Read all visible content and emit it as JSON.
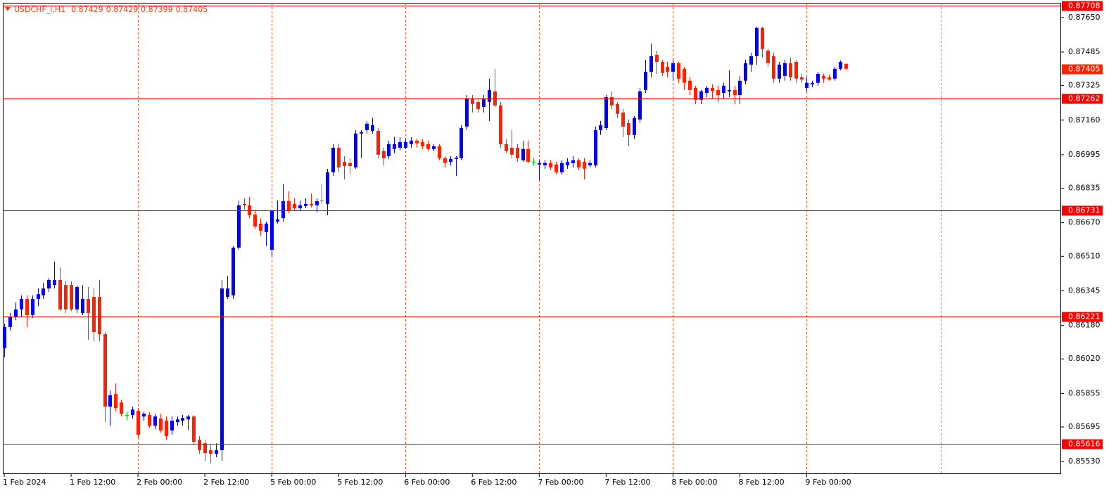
{
  "chart_data": {
    "type": "candlestick",
    "title": "USDCHF_i,H1",
    "categories": [
      "1 Feb 2024",
      null,
      null,
      null,
      null,
      null,
      null,
      null,
      null,
      null,
      null,
      null,
      "1 Feb 12:00",
      null,
      null,
      null,
      null,
      null,
      null,
      null,
      null,
      null,
      null,
      null,
      "2 Feb 00:00",
      null,
      null,
      null,
      null,
      null,
      null,
      null,
      null,
      null,
      null,
      null,
      "2 Feb 12:00",
      null,
      null,
      null,
      null,
      null,
      null,
      null,
      null,
      null,
      null,
      null,
      "5 Feb 00:00",
      null,
      null,
      null,
      null,
      null,
      null,
      null,
      null,
      null,
      null,
      null,
      "5 Feb 12:00",
      null,
      null,
      null,
      null,
      null,
      null,
      null,
      null,
      null,
      null,
      null,
      "6 Feb 00:00",
      null,
      null,
      null,
      null,
      null,
      null,
      null,
      null,
      null,
      null,
      null,
      "6 Feb 12:00",
      null,
      null,
      null,
      null,
      null,
      null,
      null,
      null,
      null,
      null,
      null,
      "7 Feb 00:00",
      null,
      null,
      null,
      null,
      null,
      null,
      null,
      null,
      null,
      null,
      null,
      "7 Feb 12:00",
      null,
      null,
      null,
      null,
      null,
      null,
      null,
      null,
      null,
      null,
      null,
      "8 Feb 00:00",
      null,
      null,
      null,
      null,
      null,
      null,
      null,
      null,
      null,
      null,
      null,
      "8 Feb 12:00",
      null,
      null,
      null,
      null,
      null,
      null,
      null,
      null,
      null,
      null,
      null,
      "9 Feb 00:00",
      null,
      null,
      null,
      null,
      null,
      null,
      null
    ],
    "open": [
      0.86071,
      0.86172,
      0.86222,
      0.86256,
      0.86306,
      0.86229,
      0.86306,
      0.86323,
      0.86356,
      0.86373,
      0.86397,
      0.86373,
      0.86373,
      0.86256,
      0.86239,
      0.86306,
      0.86316,
      0.86316,
      0.86138,
      0.85792,
      0.85852,
      0.85812,
      0.85752,
      0.85752,
      0.85772,
      0.85745,
      0.85752,
      0.85701,
      0.85735,
      0.85725,
      0.85678,
      0.85718,
      0.85725,
      0.85731,
      0.85745,
      0.85634,
      0.85617,
      0.85584,
      0.85567,
      0.85584,
      0.86316,
      0.86323,
      0.86551,
      0.8676,
      0.86753,
      0.86709,
      0.86666,
      0.86625,
      0.86541,
      0.86676,
      0.86692,
      0.86773,
      0.8676,
      0.86739,
      0.8675,
      0.8676,
      0.86753,
      0.86776,
      0.8676,
      0.86911,
      0.87028,
      0.86961,
      0.86955,
      0.86934,
      0.87096,
      0.87112,
      0.87109,
      0.87109,
      0.87012,
      0.86988,
      0.87022,
      0.87028,
      0.87028,
      0.87045,
      0.87062,
      0.87055,
      0.87045,
      0.87022,
      0.87035,
      0.86978,
      0.86961,
      0.86975,
      0.86978,
      0.87129,
      0.87264,
      0.87247,
      0.87223,
      0.87247,
      0.87297,
      0.8723,
      0.87045,
      0.87028,
      0.87028,
      0.86968,
      0.87022,
      0.86961,
      0.86948,
      0.86944,
      0.86955,
      0.86948,
      0.86911,
      0.86944,
      0.86955,
      0.86968,
      0.86961,
      0.86944,
      0.86944,
      0.87112,
      0.87122,
      0.8727,
      0.87237,
      0.87196,
      0.87146,
      0.87089,
      0.87163,
      0.87304,
      0.87391,
      0.87472,
      0.87438,
      0.87415,
      0.87391,
      0.87432,
      0.87405,
      0.87348,
      0.87314,
      0.87257,
      0.8729,
      0.87314,
      0.87304,
      0.8729,
      0.87297,
      0.87304,
      0.8728,
      0.87348,
      0.87425,
      0.87465,
      0.876,
      0.87492,
      0.87465,
      0.87358,
      0.87371,
      0.87432,
      0.87438,
      0.87364,
      0.87314,
      0.87331,
      0.87338,
      0.87371,
      0.87364,
      0.87358,
      0.87405,
      0.87429
    ],
    "high": [
      0.86188,
      0.86239,
      0.86289,
      0.86323,
      0.86323,
      0.86323,
      0.86356,
      0.86383,
      0.86407,
      0.86484,
      0.86457,
      0.8639,
      0.8639,
      0.86373,
      0.86373,
      0.86363,
      0.86356,
      0.86397,
      0.86148,
      0.85869,
      0.85903,
      0.85825,
      0.85768,
      0.85792,
      0.85785,
      0.85768,
      0.85765,
      0.85758,
      0.85758,
      0.85745,
      0.85745,
      0.85745,
      0.85752,
      0.85752,
      0.85752,
      0.85651,
      0.85634,
      0.8561,
      0.85617,
      0.86397,
      0.86417,
      0.86558,
      0.86776,
      0.86787,
      0.86793,
      0.86733,
      0.86692,
      0.86676,
      0.86733,
      0.86776,
      0.86854,
      0.8682,
      0.86787,
      0.86776,
      0.86787,
      0.8681,
      0.86787,
      0.86854,
      0.86928,
      0.87045,
      0.87045,
      0.86988,
      0.86978,
      0.87112,
      0.87112,
      0.87156,
      0.8717,
      0.87122,
      0.87028,
      0.87062,
      0.87079,
      0.87079,
      0.87072,
      0.87079,
      0.87072,
      0.87069,
      0.87062,
      0.87045,
      0.87045,
      0.86988,
      0.86988,
      0.86988,
      0.87136,
      0.8728,
      0.8728,
      0.87257,
      0.8728,
      0.87358,
      0.87405,
      0.87247,
      0.87069,
      0.87112,
      0.87045,
      0.87062,
      0.87062,
      0.86978,
      0.86968,
      0.86968,
      0.86968,
      0.86961,
      0.86968,
      0.86978,
      0.86988,
      0.86978,
      0.86978,
      0.86968,
      0.87129,
      0.87156,
      0.8728,
      0.87297,
      0.87247,
      0.87213,
      0.87163,
      0.8718,
      0.87314,
      0.87448,
      0.87526,
      0.87492,
      0.87448,
      0.87438,
      0.87448,
      0.87438,
      0.87415,
      0.87364,
      0.87324,
      0.87304,
      0.87324,
      0.87331,
      0.87324,
      0.87338,
      0.87398,
      0.87324,
      0.87371,
      0.87448,
      0.87482,
      0.87606,
      0.87606,
      0.87499,
      0.87482,
      0.87438,
      0.87448,
      0.87458,
      0.87448,
      0.87381,
      0.87364,
      0.87348,
      0.87391,
      0.87381,
      0.87378,
      0.87415,
      0.87445,
      0.87429
    ],
    "low": [
      0.86027,
      0.86155,
      0.86205,
      0.86222,
      0.86172,
      0.86215,
      0.86272,
      0.86306,
      0.8634,
      0.86356,
      0.86249,
      0.86239,
      0.86249,
      0.86239,
      0.86229,
      0.86111,
      0.86104,
      0.86104,
      0.85718,
      0.85701,
      0.85768,
      0.85745,
      0.85728,
      0.85735,
      0.85644,
      0.85725,
      0.85691,
      0.85684,
      0.85668,
      0.85634,
      0.85658,
      0.85701,
      0.85701,
      0.85678,
      0.8561,
      0.85567,
      0.85533,
      0.85523,
      0.8555,
      0.85533,
      0.86306,
      0.86306,
      0.86541,
      0.86733,
      0.86692,
      0.86642,
      0.86608,
      0.86558,
      0.86508,
      0.86666,
      0.86676,
      0.86716,
      0.86726,
      0.86726,
      0.86739,
      0.86743,
      0.86719,
      0.8676,
      0.86706,
      0.86894,
      0.86911,
      0.86877,
      0.86901,
      0.86928,
      0.86978,
      0.87096,
      0.87096,
      0.86978,
      0.86944,
      0.86975,
      0.87002,
      0.87015,
      0.87022,
      0.87028,
      0.87028,
      0.87022,
      0.87012,
      0.87012,
      0.86968,
      0.86934,
      0.86944,
      0.86894,
      0.86968,
      0.87112,
      0.87196,
      0.87196,
      0.87196,
      0.87156,
      0.87223,
      0.87028,
      0.87002,
      0.86978,
      0.86961,
      0.86961,
      0.86955,
      0.86944,
      0.86874,
      0.86928,
      0.86921,
      0.86901,
      0.86901,
      0.86928,
      0.86934,
      0.86921,
      0.86877,
      0.86934,
      0.86934,
      0.87089,
      0.87112,
      0.87213,
      0.8717,
      0.87079,
      0.87035,
      0.87069,
      0.87146,
      0.8729,
      0.87364,
      0.87381,
      0.87371,
      0.87364,
      0.87348,
      0.87338,
      0.87304,
      0.8728,
      0.87237,
      0.87237,
      0.8727,
      0.87264,
      0.87247,
      0.87264,
      0.8727,
      0.87237,
      0.87237,
      0.87331,
      0.87391,
      0.87425,
      0.87458,
      0.87415,
      0.87338,
      0.87338,
      0.87348,
      0.87348,
      0.87338,
      0.87338,
      0.87297,
      0.87317,
      0.87324,
      0.87338,
      0.87348,
      0.87348,
      0.87398,
      0.87399
    ],
    "close": [
      0.86172,
      0.86222,
      0.86256,
      0.86306,
      0.86229,
      0.86306,
      0.86329,
      0.86356,
      0.86397,
      0.86397,
      0.86256,
      0.86256,
      0.86256,
      0.86363,
      0.86306,
      0.86239,
      0.86148,
      0.86138,
      0.85792,
      0.85846,
      0.85785,
      0.85758,
      0.85752,
      0.85778,
      0.85658,
      0.85758,
      0.85701,
      0.85745,
      0.85678,
      0.85651,
      0.85725,
      0.85731,
      0.85738,
      0.85745,
      0.85624,
      0.85584,
      0.8557,
      0.85567,
      0.85584,
      0.86356,
      0.86356,
      0.86551,
      0.86753,
      0.86753,
      0.86706,
      0.86652,
      0.86632,
      0.86666,
      0.86726,
      0.86686,
      0.86773,
      0.86726,
      0.86739,
      0.86753,
      0.8676,
      0.86753,
      0.86773,
      0.86776,
      0.86911,
      0.87028,
      0.86934,
      0.86941,
      0.86941,
      0.87096,
      0.87102,
      0.87143,
      0.87136,
      0.86995,
      0.86978,
      0.87045,
      0.87045,
      0.87055,
      0.87055,
      0.87062,
      0.87049,
      0.87035,
      0.87022,
      0.87035,
      0.86978,
      0.86955,
      0.86975,
      0.86981,
      0.87122,
      0.87264,
      0.87237,
      0.87213,
      0.87264,
      0.87304,
      0.8723,
      0.87045,
      0.87012,
      0.86995,
      0.86978,
      0.87022,
      0.86961,
      0.86961,
      0.86955,
      0.86955,
      0.86934,
      0.86911,
      0.86955,
      0.86961,
      0.86968,
      0.86934,
      0.86928,
      0.86955,
      0.87112,
      0.87136,
      0.8727,
      0.8723,
      0.8719,
      0.87129,
      0.87089,
      0.8717,
      0.87297,
      0.87391,
      0.87465,
      0.87438,
      0.87385,
      0.87391,
      0.87432,
      0.87358,
      0.87338,
      0.87304,
      0.87257,
      0.87297,
      0.87314,
      0.87297,
      0.8728,
      0.87324,
      0.87304,
      0.8728,
      0.87348,
      0.87432,
      0.87465,
      0.876,
      0.87499,
      0.87432,
      0.87358,
      0.87425,
      0.87432,
      0.87364,
      0.87358,
      0.87354,
      0.87338,
      0.87338,
      0.87381,
      0.87358,
      0.87354,
      0.87405,
      0.87438,
      0.87405
    ],
    "colors": {
      "up": "#0000ff",
      "down": "#ff2200",
      "flat": "#00c800"
    },
    "ylim": [
      0.8547,
      0.8772
    ],
    "yticks": [
      {
        "value": 0.8765,
        "label": "0.87650"
      },
      0.87485,
      0.87325,
      {
        "value": 0.8716,
        "label": "0.87160"
      },
      0.86995,
      0.86835,
      {
        "value": 0.8667,
        "label": "0.86670"
      },
      {
        "value": 0.8651,
        "label": "0.86510"
      },
      0.86345,
      {
        "value": 0.8618,
        "label": "0.86180"
      },
      {
        "value": 0.8602,
        "label": "0.86020"
      },
      0.85855,
      0.85695,
      {
        "value": 0.8553,
        "label": "0.85530"
      }
    ],
    "levels": [
      0.87708,
      0.87262,
      0.86731,
      0.86221,
      0.85616
    ],
    "level_color": "#ff0000",
    "grid": true
  }
}
